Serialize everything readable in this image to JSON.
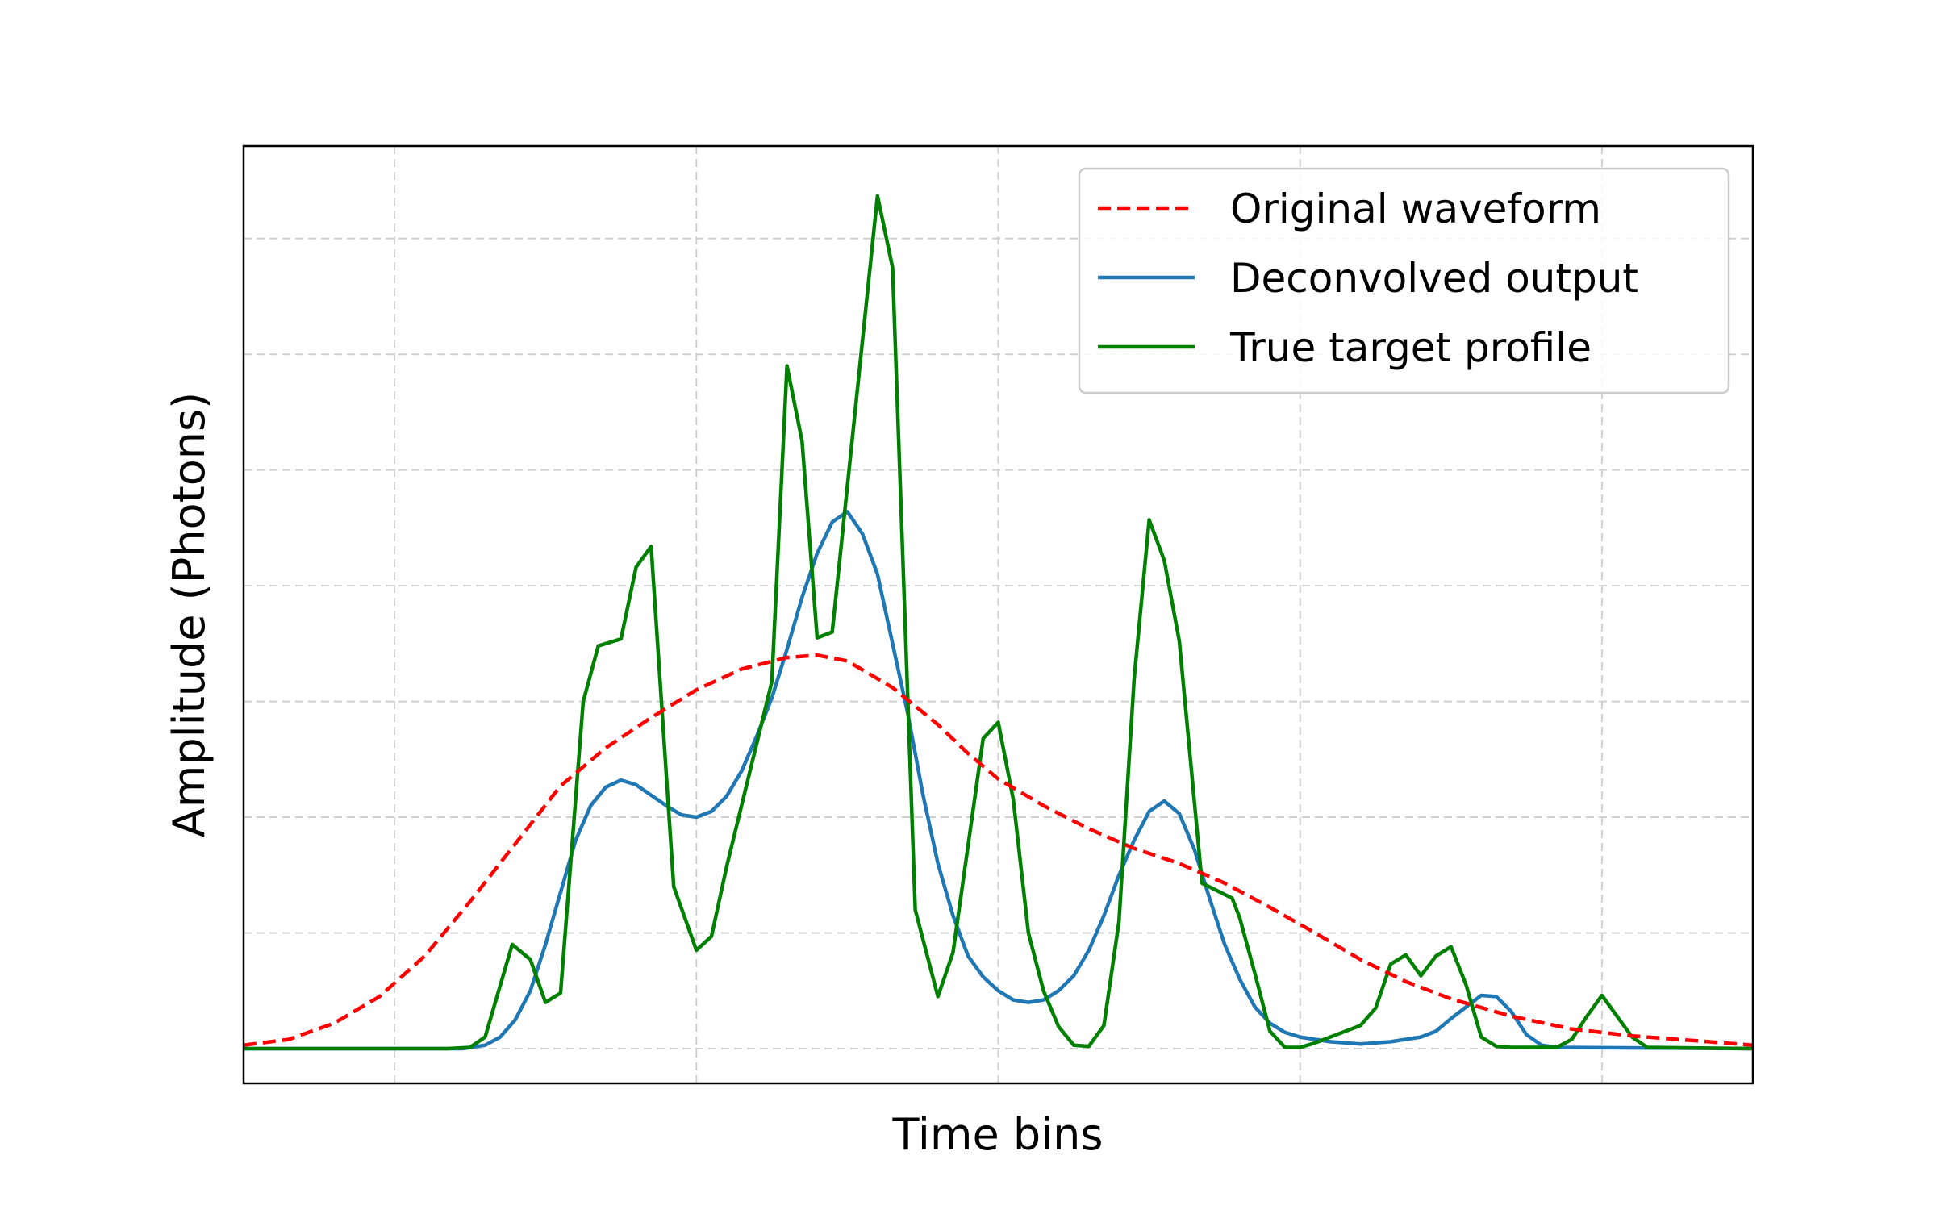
{
  "chart_data": {
    "type": "line",
    "title": "",
    "xlabel": "Time bins",
    "ylabel": "Amplitude (Photons)",
    "xlim": [
      0,
      100
    ],
    "ylim": [
      -0.03,
      0.78
    ],
    "x_gridlines": [
      10,
      30,
      50,
      70,
      90
    ],
    "y_gridlines": [
      0.0,
      0.1,
      0.2,
      0.3,
      0.4,
      0.5,
      0.6,
      0.7
    ],
    "tick_labels_visible": false,
    "grid": true,
    "legend_position": "top-right",
    "series": [
      {
        "name": "Original waveform",
        "color": "#ff0000",
        "style": "dashed",
        "points": [
          [
            0,
            0.003
          ],
          [
            3,
            0.008
          ],
          [
            6,
            0.022
          ],
          [
            9,
            0.045
          ],
          [
            12,
            0.08
          ],
          [
            15,
            0.127
          ],
          [
            18,
            0.177
          ],
          [
            21,
            0.227
          ],
          [
            24,
            0.26
          ],
          [
            27,
            0.286
          ],
          [
            30,
            0.31
          ],
          [
            33,
            0.328
          ],
          [
            36,
            0.338
          ],
          [
            38,
            0.34
          ],
          [
            40,
            0.335
          ],
          [
            43,
            0.312
          ],
          [
            46,
            0.28
          ],
          [
            48,
            0.255
          ],
          [
            50,
            0.233
          ],
          [
            53,
            0.21
          ],
          [
            56,
            0.19
          ],
          [
            59,
            0.173
          ],
          [
            62,
            0.16
          ],
          [
            65,
            0.143
          ],
          [
            68,
            0.122
          ],
          [
            71,
            0.1
          ],
          [
            74,
            0.077
          ],
          [
            77,
            0.058
          ],
          [
            80,
            0.043
          ],
          [
            84,
            0.028
          ],
          [
            88,
            0.017
          ],
          [
            92,
            0.011
          ],
          [
            96,
            0.007
          ],
          [
            100,
            0.003
          ]
        ]
      },
      {
        "name": "Deconvolved output",
        "color": "#1f77b4",
        "style": "solid",
        "points": [
          [
            0,
            0
          ],
          [
            14.5,
            0
          ],
          [
            16,
            0.003
          ],
          [
            17,
            0.01
          ],
          [
            18,
            0.025
          ],
          [
            19,
            0.05
          ],
          [
            20,
            0.09
          ],
          [
            21,
            0.135
          ],
          [
            22,
            0.18
          ],
          [
            23,
            0.21
          ],
          [
            24,
            0.226
          ],
          [
            25,
            0.232
          ],
          [
            26,
            0.228
          ],
          [
            27,
            0.219
          ],
          [
            28,
            0.21
          ],
          [
            29,
            0.202
          ],
          [
            30,
            0.2
          ],
          [
            31,
            0.205
          ],
          [
            32,
            0.218
          ],
          [
            33,
            0.24
          ],
          [
            34,
            0.27
          ],
          [
            35,
            0.303
          ],
          [
            36,
            0.345
          ],
          [
            37,
            0.39
          ],
          [
            38,
            0.428
          ],
          [
            39,
            0.455
          ],
          [
            40,
            0.464
          ],
          [
            41,
            0.445
          ],
          [
            42,
            0.41
          ],
          [
            43,
            0.35
          ],
          [
            44,
            0.29
          ],
          [
            45,
            0.22
          ],
          [
            46,
            0.16
          ],
          [
            47,
            0.115
          ],
          [
            48,
            0.08
          ],
          [
            49,
            0.062
          ],
          [
            50,
            0.05
          ],
          [
            51,
            0.042
          ],
          [
            52,
            0.04
          ],
          [
            53,
            0.042
          ],
          [
            54,
            0.05
          ],
          [
            55,
            0.063
          ],
          [
            56,
            0.085
          ],
          [
            57,
            0.115
          ],
          [
            58,
            0.15
          ],
          [
            59,
            0.18
          ],
          [
            60,
            0.205
          ],
          [
            61,
            0.214
          ],
          [
            62,
            0.203
          ],
          [
            63,
            0.172
          ],
          [
            64,
            0.13
          ],
          [
            65,
            0.09
          ],
          [
            66,
            0.06
          ],
          [
            67,
            0.036
          ],
          [
            68,
            0.022
          ],
          [
            69,
            0.014
          ],
          [
            70,
            0.01
          ],
          [
            71,
            0.008
          ],
          [
            72,
            0.006
          ],
          [
            74,
            0.004
          ],
          [
            76,
            0.006
          ],
          [
            78,
            0.01
          ],
          [
            79,
            0.015
          ],
          [
            80,
            0.026
          ],
          [
            81,
            0.036
          ],
          [
            82,
            0.046
          ],
          [
            83,
            0.045
          ],
          [
            84,
            0.032
          ],
          [
            85,
            0.012
          ],
          [
            86,
            0.003
          ],
          [
            87,
            0.001
          ],
          [
            100,
            0
          ]
        ]
      },
      {
        "name": "True target profile",
        "color": "#008000",
        "style": "solid",
        "points": [
          [
            0,
            0
          ],
          [
            13.5,
            0
          ],
          [
            15,
            0.001
          ],
          [
            16,
            0.01
          ],
          [
            17.8,
            0.09
          ],
          [
            19,
            0.077
          ],
          [
            20,
            0.04
          ],
          [
            21,
            0.048
          ],
          [
            22.5,
            0.3
          ],
          [
            23.5,
            0.348
          ],
          [
            25,
            0.354
          ],
          [
            26,
            0.416
          ],
          [
            27,
            0.434
          ],
          [
            28.5,
            0.14
          ],
          [
            30,
            0.085
          ],
          [
            31,
            0.097
          ],
          [
            32,
            0.157
          ],
          [
            35,
            0.317
          ],
          [
            36,
            0.59
          ],
          [
            37,
            0.525
          ],
          [
            38,
            0.355
          ],
          [
            39,
            0.36
          ],
          [
            42,
            0.737
          ],
          [
            43,
            0.675
          ],
          [
            44.5,
            0.12
          ],
          [
            46,
            0.045
          ],
          [
            47,
            0.083
          ],
          [
            49,
            0.268
          ],
          [
            50,
            0.282
          ],
          [
            51,
            0.215
          ],
          [
            52,
            0.1
          ],
          [
            53,
            0.05
          ],
          [
            54,
            0.019
          ],
          [
            55,
            0.003
          ],
          [
            56,
            0.002
          ],
          [
            57,
            0.02
          ],
          [
            58,
            0.11
          ],
          [
            59,
            0.319
          ],
          [
            60,
            0.457
          ],
          [
            61,
            0.422
          ],
          [
            62,
            0.352
          ],
          [
            63.5,
            0.143
          ],
          [
            65.5,
            0.13
          ],
          [
            66,
            0.113
          ],
          [
            67,
            0.065
          ],
          [
            68,
            0.015
          ],
          [
            69,
            0.001
          ],
          [
            70,
            0.001
          ],
          [
            71,
            0.005
          ],
          [
            72,
            0.01
          ],
          [
            74,
            0.02
          ],
          [
            75,
            0.035
          ],
          [
            76,
            0.073
          ],
          [
            77,
            0.081
          ],
          [
            78,
            0.063
          ],
          [
            79,
            0.08
          ],
          [
            80,
            0.088
          ],
          [
            81,
            0.055
          ],
          [
            82,
            0.01
          ],
          [
            83,
            0.002
          ],
          [
            84,
            0.001
          ],
          [
            87,
            0.001
          ],
          [
            88,
            0.008
          ],
          [
            89,
            0.028
          ],
          [
            90,
            0.046
          ],
          [
            91,
            0.028
          ],
          [
            92,
            0.01
          ],
          [
            93,
            0.001
          ],
          [
            100,
            0
          ]
        ]
      }
    ]
  }
}
